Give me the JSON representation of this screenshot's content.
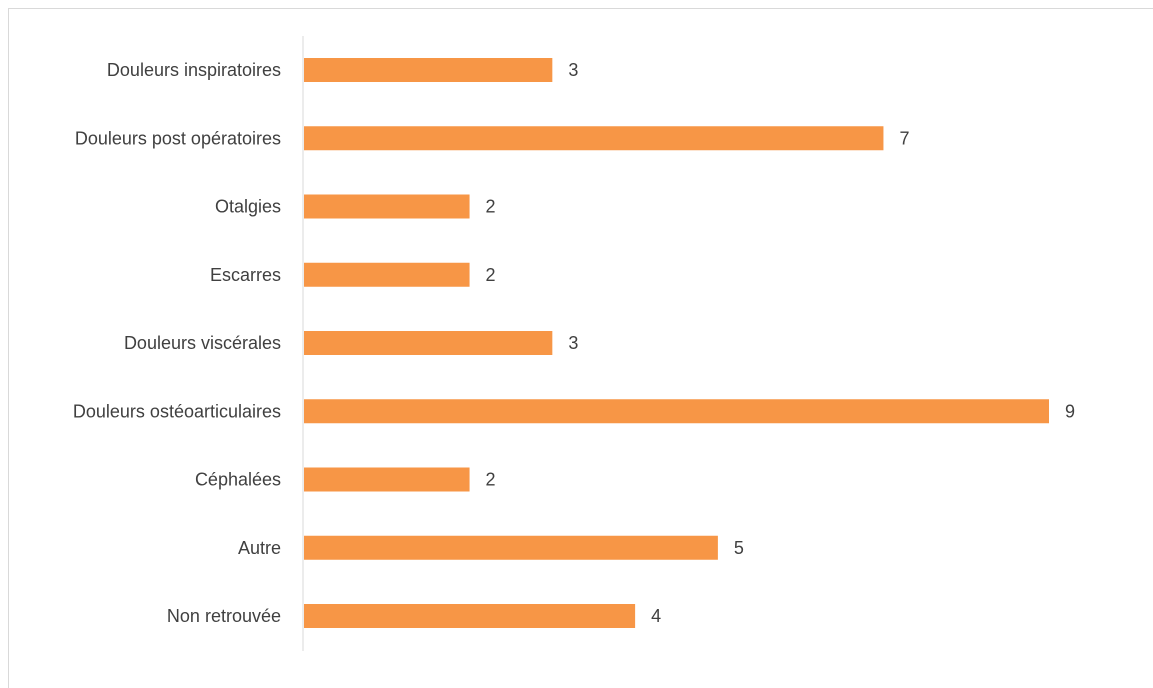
{
  "chart_data": {
    "type": "bar",
    "orientation": "horizontal",
    "categories": [
      "Douleurs inspiratoires",
      "Douleurs post opératoires",
      "Otalgies",
      "Escarres",
      "Douleurs viscérales",
      "Douleurs ostéoarticulaires",
      "Céphalées",
      "Autre",
      "Non retrouvée"
    ],
    "values": [
      3,
      7,
      2,
      2,
      3,
      9,
      2,
      5,
      4
    ],
    "data_labels": [
      "3",
      "7",
      "2",
      "2",
      "3",
      "9",
      "2",
      "5",
      "4"
    ],
    "xlim": [
      0,
      9
    ],
    "grid": false,
    "legend": "none",
    "bar_color": "#f79646",
    "axis_color": "#d9d9d9",
    "text_color": "#404040"
  }
}
